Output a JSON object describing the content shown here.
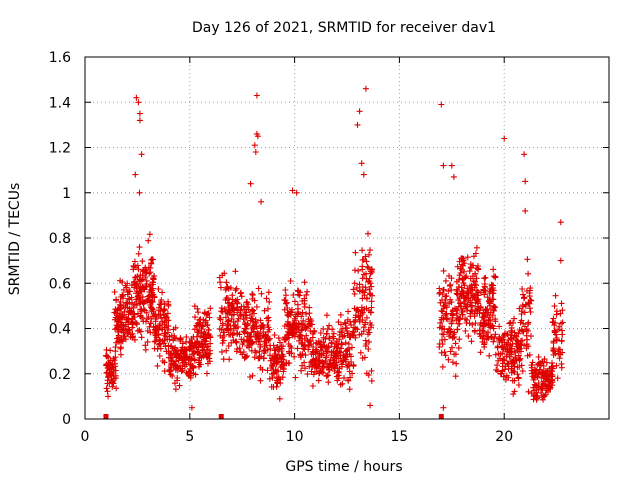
{
  "chart_data": {
    "type": "scatter",
    "title": "Day 126 of 2021, SRMTID for receiver dav1",
    "xlabel": "GPS time / hours",
    "ylabel": "SRMTID / TECUs",
    "xlim": [
      0,
      25
    ],
    "ylim": [
      0,
      1.6
    ],
    "xticks": [
      0,
      5,
      10,
      15,
      20
    ],
    "yticks": [
      0,
      0.2,
      0.4,
      0.6,
      0.8,
      1,
      1.2,
      1.4,
      1.6
    ],
    "xtick_labels": [
      "0",
      "5",
      "10",
      "15",
      "20"
    ],
    "ytick_labels": [
      "0",
      "0.2",
      "0.4",
      "0.6",
      "0.8",
      "1",
      "1.2",
      "1.4",
      "1.6"
    ],
    "grid": true,
    "marker": "+",
    "color": "#e00000",
    "gap_markers_x": [
      1.0,
      6.5,
      17.0
    ],
    "clusters": [
      {
        "x": [
          1.0,
          1.5
        ],
        "center": 0.22,
        "spread": 0.08,
        "n": 60
      },
      {
        "x": [
          1.4,
          2.3
        ],
        "center": 0.45,
        "spread": 0.13,
        "n": 130
      },
      {
        "x": [
          2.3,
          3.3
        ],
        "center": 0.55,
        "spread": 0.16,
        "n": 160
      },
      {
        "x": [
          3.3,
          4.0
        ],
        "center": 0.4,
        "spread": 0.12,
        "n": 90
      },
      {
        "x": [
          4.0,
          5.2
        ],
        "center": 0.27,
        "spread": 0.09,
        "n": 150
      },
      {
        "x": [
          5.2,
          6.0
        ],
        "center": 0.34,
        "spread": 0.12,
        "n": 110
      },
      {
        "x": [
          6.4,
          7.5
        ],
        "center": 0.45,
        "spread": 0.13,
        "n": 120
      },
      {
        "x": [
          7.5,
          8.8
        ],
        "center": 0.38,
        "spread": 0.13,
        "n": 150
      },
      {
        "x": [
          8.8,
          9.5
        ],
        "center": 0.25,
        "spread": 0.09,
        "n": 80
      },
      {
        "x": [
          9.5,
          10.8
        ],
        "center": 0.4,
        "spread": 0.14,
        "n": 160
      },
      {
        "x": [
          10.8,
          12.0
        ],
        "center": 0.28,
        "spread": 0.1,
        "n": 140
      },
      {
        "x": [
          12.0,
          12.8
        ],
        "center": 0.3,
        "spread": 0.13,
        "n": 90
      },
      {
        "x": [
          12.8,
          13.7
        ],
        "center": 0.5,
        "spread": 0.22,
        "n": 110
      },
      {
        "x": [
          16.9,
          17.8
        ],
        "center": 0.45,
        "spread": 0.18,
        "n": 100
      },
      {
        "x": [
          17.8,
          18.8
        ],
        "center": 0.55,
        "spread": 0.15,
        "n": 150
      },
      {
        "x": [
          18.8,
          19.6
        ],
        "center": 0.45,
        "spread": 0.14,
        "n": 110
      },
      {
        "x": [
          19.6,
          20.8
        ],
        "center": 0.3,
        "spread": 0.11,
        "n": 140
      },
      {
        "x": [
          20.8,
          21.3
        ],
        "center": 0.45,
        "spread": 0.2,
        "n": 50
      },
      {
        "x": [
          21.3,
          22.3
        ],
        "center": 0.18,
        "spread": 0.07,
        "n": 120
      },
      {
        "x": [
          22.3,
          22.8
        ],
        "center": 0.38,
        "spread": 0.14,
        "n": 50
      }
    ],
    "outliers": [
      {
        "x": 2.45,
        "y": 1.42
      },
      {
        "x": 2.55,
        "y": 1.4
      },
      {
        "x": 2.62,
        "y": 1.35
      },
      {
        "x": 2.62,
        "y": 1.32
      },
      {
        "x": 2.7,
        "y": 1.17
      },
      {
        "x": 2.4,
        "y": 1.08
      },
      {
        "x": 2.6,
        "y": 1.0
      },
      {
        "x": 8.2,
        "y": 1.43
      },
      {
        "x": 8.2,
        "y": 1.26
      },
      {
        "x": 8.25,
        "y": 1.25
      },
      {
        "x": 8.1,
        "y": 1.21
      },
      {
        "x": 8.15,
        "y": 1.18
      },
      {
        "x": 7.9,
        "y": 1.04
      },
      {
        "x": 8.4,
        "y": 0.96
      },
      {
        "x": 9.9,
        "y": 1.01
      },
      {
        "x": 10.1,
        "y": 1.0
      },
      {
        "x": 13.1,
        "y": 1.36
      },
      {
        "x": 13.4,
        "y": 1.46
      },
      {
        "x": 13.0,
        "y": 1.3
      },
      {
        "x": 13.2,
        "y": 1.13
      },
      {
        "x": 13.3,
        "y": 1.08
      },
      {
        "x": 17.0,
        "y": 1.39
      },
      {
        "x": 17.1,
        "y": 1.12
      },
      {
        "x": 17.5,
        "y": 1.12
      },
      {
        "x": 17.6,
        "y": 1.07
      },
      {
        "x": 20.0,
        "y": 1.24
      },
      {
        "x": 20.95,
        "y": 1.17
      },
      {
        "x": 21.0,
        "y": 1.05
      },
      {
        "x": 21.0,
        "y": 0.92
      },
      {
        "x": 22.7,
        "y": 0.87
      },
      {
        "x": 22.7,
        "y": 0.7
      },
      {
        "x": 1.1,
        "y": 0.1
      },
      {
        "x": 5.1,
        "y": 0.05
      },
      {
        "x": 13.6,
        "y": 0.06
      },
      {
        "x": 17.1,
        "y": 0.05
      }
    ]
  }
}
